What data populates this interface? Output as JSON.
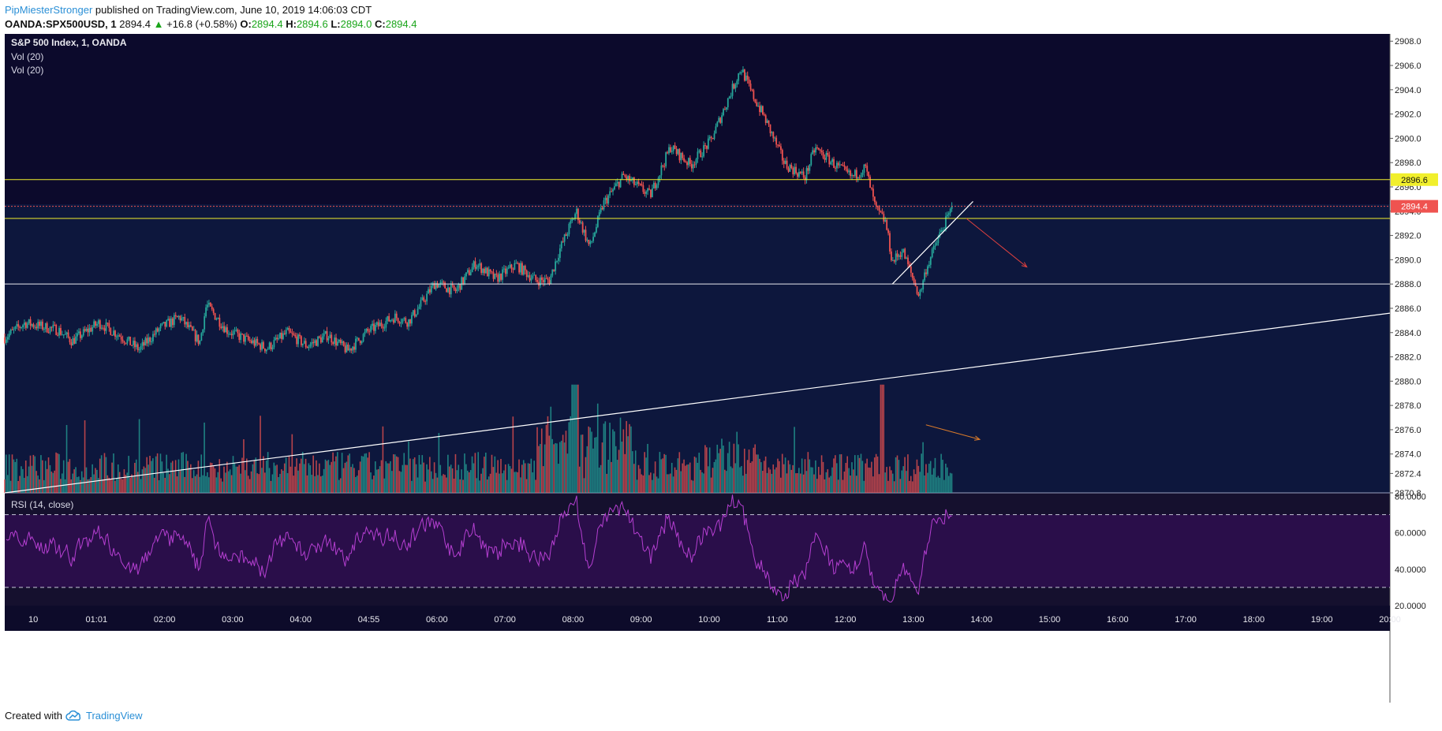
{
  "header": {
    "author": "PipMiesterStronger",
    "published": "published on TradingView.com, June 10, 2019 14:06:03 CDT",
    "symbol": "OANDA:SPX500USD, 1",
    "last": "2894.4",
    "change_arrow": "▲",
    "change": "+16.8 (+0.58%)",
    "o_label": "O:",
    "o": "2894.4",
    "h_label": "H:",
    "h": "2894.6",
    "l_label": "L:",
    "l": "2894.0",
    "c_label": "C:",
    "c": "2894.4"
  },
  "legend": {
    "title": "S&P 500 Index, 1, OANDA",
    "vol1": "Vol (20)",
    "vol2": "Vol (20)",
    "rsi": "RSI (14, close)"
  },
  "footer": {
    "created": "Created with",
    "brand": "TradingView",
    "brand_icon": "tradingview-cloud-icon"
  },
  "colors": {
    "up": "#26a69a",
    "down": "#ef5350",
    "background_top": "#0c0a2c",
    "background_band": "#0d173d",
    "level": "#f1ef2c",
    "rsi": "#b53fd1",
    "rsi_fill": "#2a0e4a",
    "current_price": "#ef5350"
  },
  "chart_data": {
    "type": "candlestick",
    "price_axis": {
      "ticks": [
        "2908.0",
        "2906.0",
        "2904.0",
        "2902.0",
        "2900.0",
        "2898.0",
        "2896.0",
        "2894.0",
        "2892.0",
        "2890.0",
        "2888.0",
        "2886.0",
        "2884.0",
        "2882.0",
        "2880.0",
        "2878.0",
        "2876.0",
        "2874.0",
        "2872.4",
        "2870.8"
      ],
      "range": [
        2870.8,
        2908.6
      ]
    },
    "time_axis": {
      "ticks": [
        "10",
        "01:01",
        "02:00",
        "03:00",
        "04:00",
        "04:55",
        "06:00",
        "07:00",
        "08:00",
        "09:00",
        "10:00",
        "11:00",
        "12:00",
        "13:00",
        "14:00",
        "15:00",
        "16:00",
        "17:00",
        "18:00",
        "19:00",
        "20:00"
      ],
      "range_hours": [
        0,
        20.6
      ]
    },
    "price_path": [
      [
        0,
        2883.6
      ],
      [
        0.3,
        2884.8
      ],
      [
        0.8,
        2884.2
      ],
      [
        1.0,
        2883.3
      ],
      [
        1.4,
        2884.8
      ],
      [
        1.7,
        2883.8
      ],
      [
        2.0,
        2882.6
      ],
      [
        2.3,
        2884.3
      ],
      [
        2.6,
        2885.3
      ],
      [
        2.9,
        2883.2
      ],
      [
        3.0,
        2886.3
      ],
      [
        3.3,
        2884.2
      ],
      [
        3.6,
        2883.4
      ],
      [
        3.9,
        2882.7
      ],
      [
        4.2,
        2884.0
      ],
      [
        4.5,
        2882.9
      ],
      [
        4.8,
        2883.8
      ],
      [
        5.1,
        2882.5
      ],
      [
        5.4,
        2884.1
      ],
      [
        5.8,
        2885.3
      ],
      [
        6.0,
        2884.9
      ],
      [
        6.15,
        2886.0
      ],
      [
        6.4,
        2888.1
      ],
      [
        6.7,
        2887.4
      ],
      [
        7.0,
        2889.7
      ],
      [
        7.3,
        2888.4
      ],
      [
        7.6,
        2889.6
      ],
      [
        7.9,
        2888.3
      ],
      [
        8.1,
        2888.3
      ],
      [
        8.25,
        2890.8
      ],
      [
        8.5,
        2894.0
      ],
      [
        8.7,
        2891.0
      ],
      [
        8.9,
        2894.6
      ],
      [
        9.2,
        2896.9
      ],
      [
        9.6,
        2895.3
      ],
      [
        9.9,
        2899.3
      ],
      [
        10.2,
        2897.8
      ],
      [
        10.5,
        2899.8
      ],
      [
        10.8,
        2903.8
      ],
      [
        10.95,
        2905.8
      ],
      [
        11.1,
        2903.8
      ],
      [
        11.3,
        2901.7
      ],
      [
        11.6,
        2897.9
      ],
      [
        11.9,
        2896.8
      ],
      [
        12.05,
        2899.2
      ],
      [
        12.35,
        2897.8
      ],
      [
        12.6,
        2896.8
      ],
      [
        12.8,
        2897.6
      ],
      [
        12.95,
        2894.2
      ],
      [
        13.1,
        2893.1
      ],
      [
        13.2,
        2889.8
      ],
      [
        13.35,
        2890.8
      ],
      [
        13.6,
        2887.0
      ],
      [
        13.7,
        2889.2
      ],
      [
        13.9,
        2892.0
      ],
      [
        14.05,
        2893.8
      ],
      [
        14.1,
        2894.4
      ]
    ],
    "volume": {
      "scale": [
        0,
        30
      ],
      "peaks_hours": [
        8.45,
        8.5,
        13.05
      ]
    },
    "rsi": {
      "ticks": [
        "80.0000",
        "60.0000",
        "40.0000",
        "20.0000"
      ],
      "range": [
        20,
        82
      ],
      "levels": [
        70,
        30
      ]
    },
    "levels": {
      "resistance_upper": 2896.6,
      "resistance_lower": 2893.4,
      "support": 2888.0,
      "current": 2894.4,
      "badge_upper": "2896.6",
      "badge_current": "2894.4"
    },
    "trendlines": [
      {
        "from": [
          0,
          2870.8
        ],
        "to": [
          20.6,
          2885.6
        ],
        "color": "#ffffff"
      },
      {
        "from": [
          13.2,
          2888.0
        ],
        "to": [
          14.4,
          2894.8
        ],
        "color": "#ffffff"
      }
    ],
    "arrows": [
      {
        "from": [
          14.3,
          2893.4
        ],
        "to": [
          15.2,
          2889.4
        ],
        "color": "#e0413f"
      },
      {
        "from": [
          13.7,
          2876.4
        ],
        "to": [
          14.5,
          2875.2
        ],
        "color": "#d97a2a"
      }
    ]
  }
}
